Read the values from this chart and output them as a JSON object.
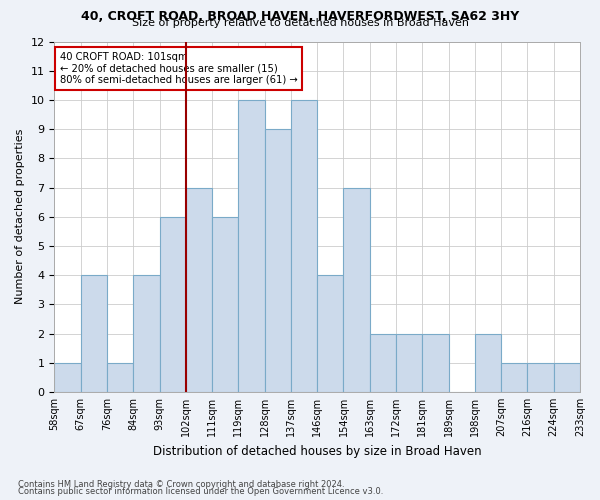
{
  "title_line1": "40, CROFT ROAD, BROAD HAVEN, HAVERFORDWEST, SA62 3HY",
  "title_line2": "Size of property relative to detached houses in Broad Haven",
  "xlabel": "Distribution of detached houses by size in Broad Haven",
  "ylabel": "Number of detached properties",
  "bin_labels": [
    "58sqm",
    "67sqm",
    "76sqm",
    "84sqm",
    "93sqm",
    "102sqm",
    "111sqm",
    "119sqm",
    "128sqm",
    "137sqm",
    "146sqm",
    "154sqm",
    "163sqm",
    "172sqm",
    "181sqm",
    "189sqm",
    "198sqm",
    "207sqm",
    "216sqm",
    "224sqm",
    "233sqm"
  ],
  "bar_heights": [
    1,
    4,
    1,
    4,
    6,
    7,
    6,
    10,
    9,
    10,
    4,
    7,
    2,
    2,
    2,
    0,
    2,
    1,
    1,
    1
  ],
  "bar_color": "#ccdaeb",
  "bar_edge_color": "#7aaac8",
  "vline_x": 4.5,
  "vline_color": "#990000",
  "annotation_text": "40 CROFT ROAD: 101sqm\n← 20% of detached houses are smaller (15)\n80% of semi-detached houses are larger (61) →",
  "annotation_box_color": "white",
  "annotation_box_edge_color": "#cc0000",
  "ylim": [
    0,
    12
  ],
  "yticks": [
    0,
    1,
    2,
    3,
    4,
    5,
    6,
    7,
    8,
    9,
    10,
    11,
    12
  ],
  "footer_line1": "Contains HM Land Registry data © Crown copyright and database right 2024.",
  "footer_line2": "Contains public sector information licensed under the Open Government Licence v3.0.",
  "background_color": "#eef2f8",
  "plot_bg_color": "white",
  "grid_color": "#cccccc"
}
